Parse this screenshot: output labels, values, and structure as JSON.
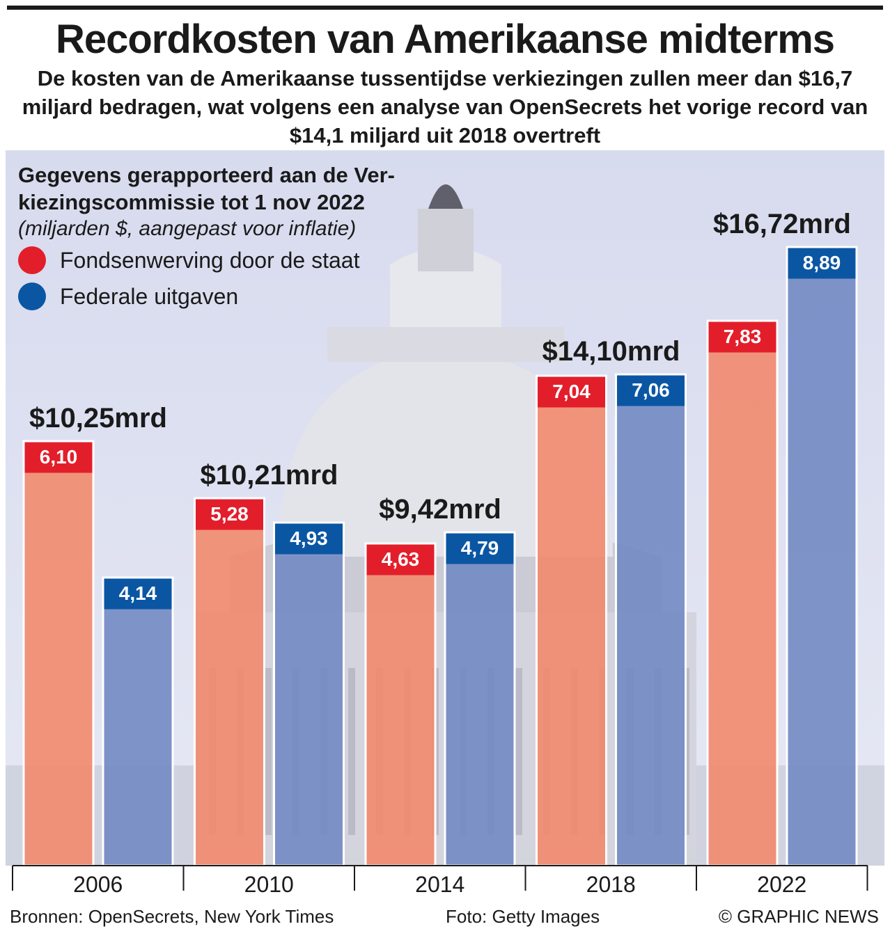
{
  "title": "Recordkosten van Amerikaanse midterms",
  "subtitle": "De kosten van de Amerikaanse tussentijdse verkiezingen zullen meer dan $16,7 miljard bedragen, wat volgens een analyse van OpenSecrets het vorige record van $14,1 miljard uit 2018 overtreft",
  "legend": {
    "heading": "Gegevens gerapporteerd aan de Verkiezingscommissie tot 1 nov 2022",
    "heading_line1": "Gegevens gerapporteerd aan de Ver-",
    "heading_line2": "kiezingscommissie tot 1 nov 2022",
    "units": "(miljarden $, aangepast voor inflatie)",
    "items": [
      {
        "label": "Fondsenwerving door de staat",
        "color": "#e31e2b"
      },
      {
        "label": "Federale uitgaven",
        "color": "#0a56a3"
      }
    ]
  },
  "colors": {
    "state_bar": "#f2876a",
    "state_label": "#e31e2b",
    "federal_bar": "#6f87c2",
    "federal_label": "#0a56a3",
    "panel": "#dcdff0"
  },
  "chart_data": {
    "type": "bar",
    "title": "Recordkosten van Amerikaanse midterms",
    "xlabel": "",
    "ylabel": "miljarden $, aangepast voor inflatie",
    "ylim": [
      0,
      9.5
    ],
    "categories": [
      "2006",
      "2010",
      "2014",
      "2018",
      "2022"
    ],
    "series": [
      {
        "name": "Fondsenwerving door de staat",
        "values": [
          6.1,
          5.28,
          4.63,
          7.04,
          7.83
        ],
        "labels": [
          "6,10",
          "5,28",
          "4,63",
          "7,04",
          "7,83"
        ]
      },
      {
        "name": "Federale uitgaven",
        "values": [
          4.14,
          4.93,
          4.79,
          7.06,
          8.89
        ],
        "labels": [
          "4,14",
          "4,93",
          "4,79",
          "7,06",
          "8,89"
        ]
      }
    ],
    "totals": [
      10.25,
      10.21,
      9.42,
      14.1,
      16.72
    ],
    "total_labels": [
      "$10,25mrd",
      "$10,21mrd",
      "$9,42mrd",
      "$14,10mrd",
      "$16,72mrd"
    ]
  },
  "footer": {
    "source": "Bronnen: OpenSecrets, New York Times",
    "photo": "Foto: Getty Images",
    "copyright": "© GRAPHIC NEWS"
  }
}
